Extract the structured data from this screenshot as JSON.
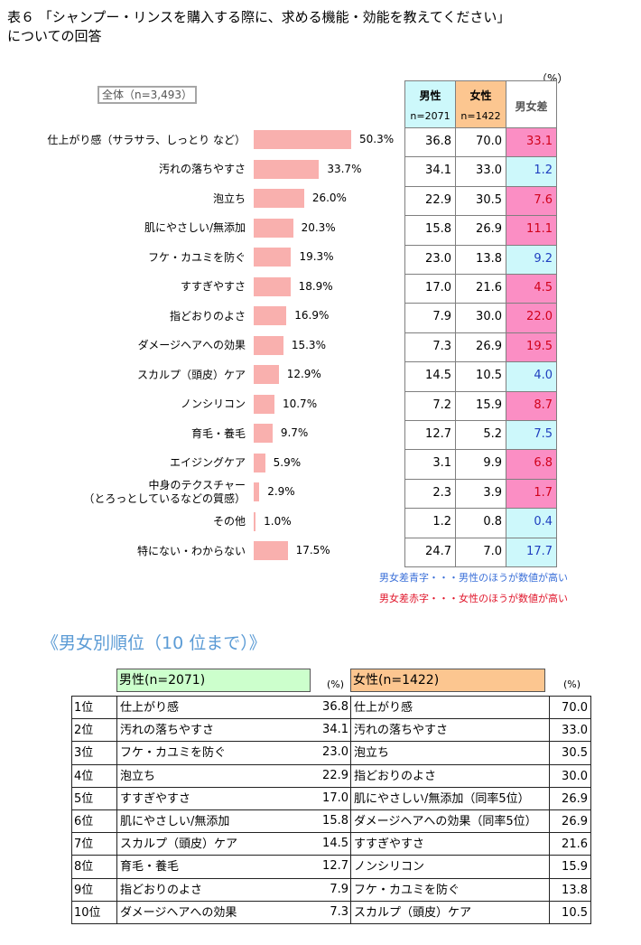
{
  "title": {
    "line1": "表６ 「シャンプー・リンスを購入する際に、求める機能・効能を教えてください」",
    "line2": "についての回答"
  },
  "unit": "（%）",
  "scope": "全体（n=3,493）",
  "chart_data": {
    "type": "bar",
    "orientation": "horizontal",
    "title": "",
    "categories": [
      "仕上がり感（サラサラ、しっとり など）",
      "汚れの落ちやすさ",
      "泡立ち",
      "肌にやさしい/無添加",
      "フケ・カユミを防ぐ",
      "すすぎやすさ",
      "指どおりのよさ",
      "ダメージヘアへの効果",
      "スカルプ（頭皮）ケア",
      "ノンシリコン",
      "育毛・養毛",
      "エイジングケア",
      "中身のテクスチャー（とろっとしているなどの質感）",
      "その他",
      "特にない・わからない"
    ],
    "category_lines": [
      [
        "仕上がり感（サラサラ、しっとり など）"
      ],
      [
        "汚れの落ちやすさ"
      ],
      [
        "泡立ち"
      ],
      [
        "肌にやさしい/無添加"
      ],
      [
        "フケ・カユミを防ぐ"
      ],
      [
        "すすぎやすさ"
      ],
      [
        "指どおりのよさ"
      ],
      [
        "ダメージヘアへの効果"
      ],
      [
        "スカルプ（頭皮）ケア"
      ],
      [
        "ノンシリコン"
      ],
      [
        "育毛・養毛"
      ],
      [
        "エイジングケア"
      ],
      [
        "中身のテクスチャー",
        "（とろっとしているなどの質感）"
      ],
      [
        "その他"
      ],
      [
        "特にない・わからない"
      ]
    ],
    "values": [
      50.3,
      33.7,
      26.0,
      20.3,
      19.3,
      18.9,
      16.9,
      15.3,
      12.9,
      10.7,
      9.7,
      5.9,
      2.9,
      1.0,
      17.5
    ],
    "value_labels": [
      "50.3%",
      "33.7%",
      "26.0%",
      "20.3%",
      "19.3%",
      "18.9%",
      "16.9%",
      "15.3%",
      "12.9%",
      "10.7%",
      "9.7%",
      "5.9%",
      "2.9%",
      "1.0%",
      "17.5%"
    ],
    "bar_color": "#f9b0ae",
    "xlim": [
      0,
      55
    ]
  },
  "gender_table": {
    "headers": [
      {
        "title": "男性",
        "n": "n=2071"
      },
      {
        "title": "女性",
        "n": "n=1422"
      },
      {
        "title": "男女差",
        "n": ""
      }
    ],
    "male": [
      "36.8",
      "34.1",
      "22.9",
      "15.8",
      "23.0",
      "17.0",
      "7.9",
      "7.3",
      "14.5",
      "7.2",
      "12.7",
      "3.1",
      "2.3",
      "1.2",
      "24.7"
    ],
    "female": [
      "70.0",
      "33.0",
      "30.5",
      "26.9",
      "13.8",
      "21.6",
      "30.0",
      "26.9",
      "10.5",
      "15.9",
      "5.2",
      "9.9",
      "3.9",
      "0.8",
      "7.0"
    ],
    "diff": [
      "33.1",
      "1.2",
      "7.6",
      "11.1",
      "9.2",
      "4.5",
      "22.0",
      "19.5",
      "4.0",
      "8.7",
      "7.5",
      "6.8",
      "1.7",
      "0.4",
      "17.7"
    ],
    "diff_sign": [
      "pos",
      "neg",
      "pos",
      "pos",
      "neg",
      "pos",
      "pos",
      "pos",
      "neg",
      "pos",
      "neg",
      "pos",
      "pos",
      "neg",
      "neg"
    ],
    "colors": {
      "male_higher": "#1f3fbf",
      "female_higher": "#d0021b",
      "header_male": "#cdf8fb",
      "header_female": "#fcc690"
    }
  },
  "notes": {
    "blue": "男女差青字・・・男性のほうが数値が高い",
    "red": "男女差赤字・・・女性のほうが数値が高い"
  },
  "ranking": {
    "subtitle": "《男女別順位（10 位まで）》",
    "male_header": "男性(n=2071)",
    "female_header": "女性(n=1422)",
    "unit": "(%)",
    "ranks": [
      "1位",
      "2位",
      "3位",
      "4位",
      "5位",
      "6位",
      "7位",
      "8位",
      "9位",
      "10位"
    ],
    "male_items": [
      "仕上がり感",
      "汚れの落ちやすさ",
      "フケ・カユミを防ぐ",
      "泡立ち",
      "すすぎやすさ",
      "肌にやさしい/無添加",
      "スカルプ（頭皮）ケア",
      "育毛・養毛",
      "指どおりのよさ",
      "ダメージヘアへの効果"
    ],
    "male_values": [
      "36.8",
      "34.1",
      "23.0",
      "22.9",
      "17.0",
      "15.8",
      "14.5",
      "12.7",
      "7.9",
      "7.3"
    ],
    "female_items": [
      "仕上がり感",
      "汚れの落ちやすさ",
      "泡立ち",
      "指どおりのよさ",
      "肌にやさしい/無添加（同率5位）",
      "ダメージヘアへの効果（同率5位）",
      "すすぎやすさ",
      "ノンシリコン",
      "フケ・カユミを防ぐ",
      "スカルプ（頭皮）ケア"
    ],
    "female_values": [
      "70.0",
      "33.0",
      "30.5",
      "30.0",
      "26.9",
      "26.9",
      "21.6",
      "15.9",
      "13.8",
      "10.5"
    ]
  }
}
